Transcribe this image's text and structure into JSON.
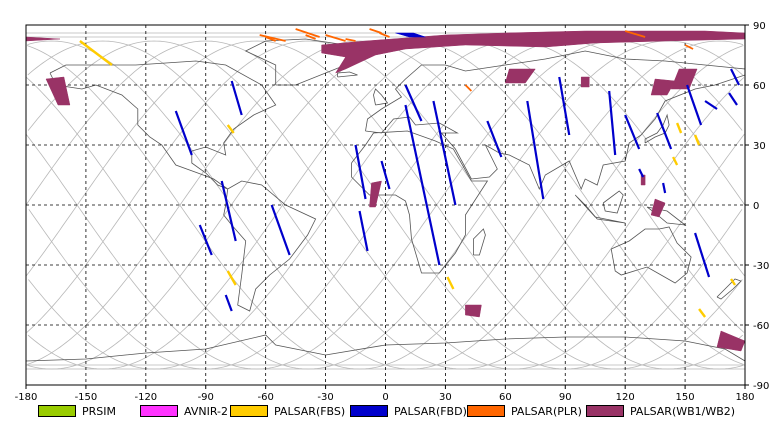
{
  "map": {
    "x_ticks": [
      "-180",
      "-150",
      "-120",
      "-90",
      "-60",
      "-30",
      "0",
      "30",
      "60",
      "90",
      "120",
      "150",
      "180"
    ],
    "y_ticks": [
      "90",
      "60",
      "30",
      "0",
      "-30",
      "-60",
      "-90"
    ],
    "lon_range": [
      -180,
      180
    ],
    "lat_range": [
      -90,
      90
    ],
    "projection": "equirectangular",
    "grid": "dashed, every 30 degrees"
  },
  "legend": [
    {
      "label": "PRSIM",
      "color": "#99cc00"
    },
    {
      "label": "AVNIR-2",
      "color": "#ff33ff"
    },
    {
      "label": "PALSAR(FBS)",
      "color": "#ffcc00"
    },
    {
      "label": "PALSAR(FBD)",
      "color": "#0000cc"
    },
    {
      "label": "PALSAR(PLR)",
      "color": "#ff6600"
    },
    {
      "label": "PALSAR(WB1/WB2)",
      "color": "#993366"
    }
  ],
  "colors": {
    "fbs": "#ffcc00",
    "fbd": "#0000cc",
    "plr": "#ff6600",
    "wb": "#993366",
    "orbit": "#b8b8b8",
    "coast": "#555555"
  }
}
